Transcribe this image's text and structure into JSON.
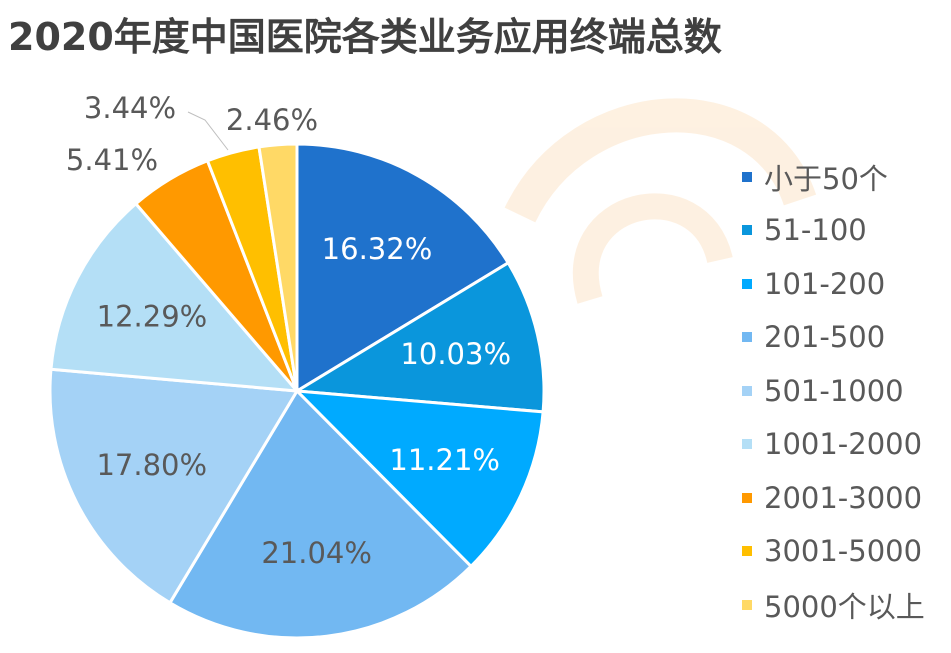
{
  "chart_data": {
    "type": "pie",
    "title": "2020年度中国医院各类业务应用终端总数",
    "categories": [
      "小于50个",
      "51-100",
      "101-200",
      "201-500",
      "501-1000",
      "1001-2000",
      "2001-3000",
      "3001-5000",
      "5000个以上"
    ],
    "values": [
      16.32,
      10.03,
      11.21,
      21.04,
      17.8,
      12.29,
      5.41,
      3.44,
      2.46
    ],
    "data_labels": [
      "16.32%",
      "10.03%",
      "11.21%",
      "21.04%",
      "17.80%",
      "12.29%",
      "5.41%",
      "3.44%",
      "2.46%"
    ],
    "colors": [
      "#1f72cc",
      "#0a96dc",
      "#00aaff",
      "#72b8f2",
      "#a4d2f6",
      "#b4dff6",
      "#ff9900",
      "#ffbf00",
      "#ffd966"
    ],
    "legend_position": "right",
    "start_angle": "top, clockwise"
  }
}
